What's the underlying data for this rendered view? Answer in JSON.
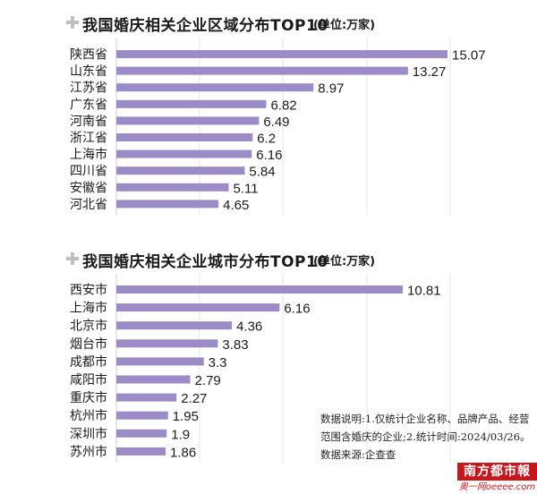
{
  "chart_data": [
    {
      "type": "bar",
      "orientation": "horizontal",
      "title": "我国婚庆相关企业区域分布TOP10",
      "unit": "(单位:万家)",
      "categories": [
        "陕西省",
        "山东省",
        "江苏省",
        "广东省",
        "河南省",
        "浙江省",
        "上海市",
        "四川省",
        "安徽省",
        "河北省"
      ],
      "values": [
        15.07,
        13.27,
        8.97,
        6.82,
        6.49,
        6.2,
        6.16,
        5.84,
        5.11,
        4.65
      ],
      "value_labels": [
        "15.07",
        "13.27",
        "8.97",
        "6.82",
        "6.49",
        "6.2",
        "6.16",
        "5.84",
        "5.11",
        "4.65"
      ],
      "xlim": [
        0,
        15.07
      ],
      "grid": "vertical",
      "bar_color": "#9b8bc6"
    },
    {
      "type": "bar",
      "orientation": "horizontal",
      "title": "我国婚庆相关企业城市分布TOP10",
      "unit": "(单位:万家)",
      "categories": [
        "西安市",
        "上海市",
        "北京市",
        "烟台市",
        "成都市",
        "咸阳市",
        "重庆市",
        "杭州市",
        "深圳市",
        "苏州市"
      ],
      "values": [
        10.81,
        6.16,
        4.36,
        3.83,
        3.3,
        2.79,
        2.27,
        1.95,
        1.9,
        1.86
      ],
      "value_labels": [
        "10.81",
        "6.16",
        "4.36",
        "3.83",
        "3.3",
        "2.79",
        "2.27",
        "1.95",
        "1.9",
        "1.86"
      ],
      "xlim": [
        0,
        10.81
      ],
      "grid": "vertical",
      "bar_color": "#9b8bc6"
    }
  ],
  "note": "数据说明:1.仅统计企业名称、品牌产品、经营范围含婚庆的企业;2.统计时间:2024/03/26。 数据来源:企查查",
  "logo": "南方都市報",
  "site": "奥一网oeeee.com"
}
